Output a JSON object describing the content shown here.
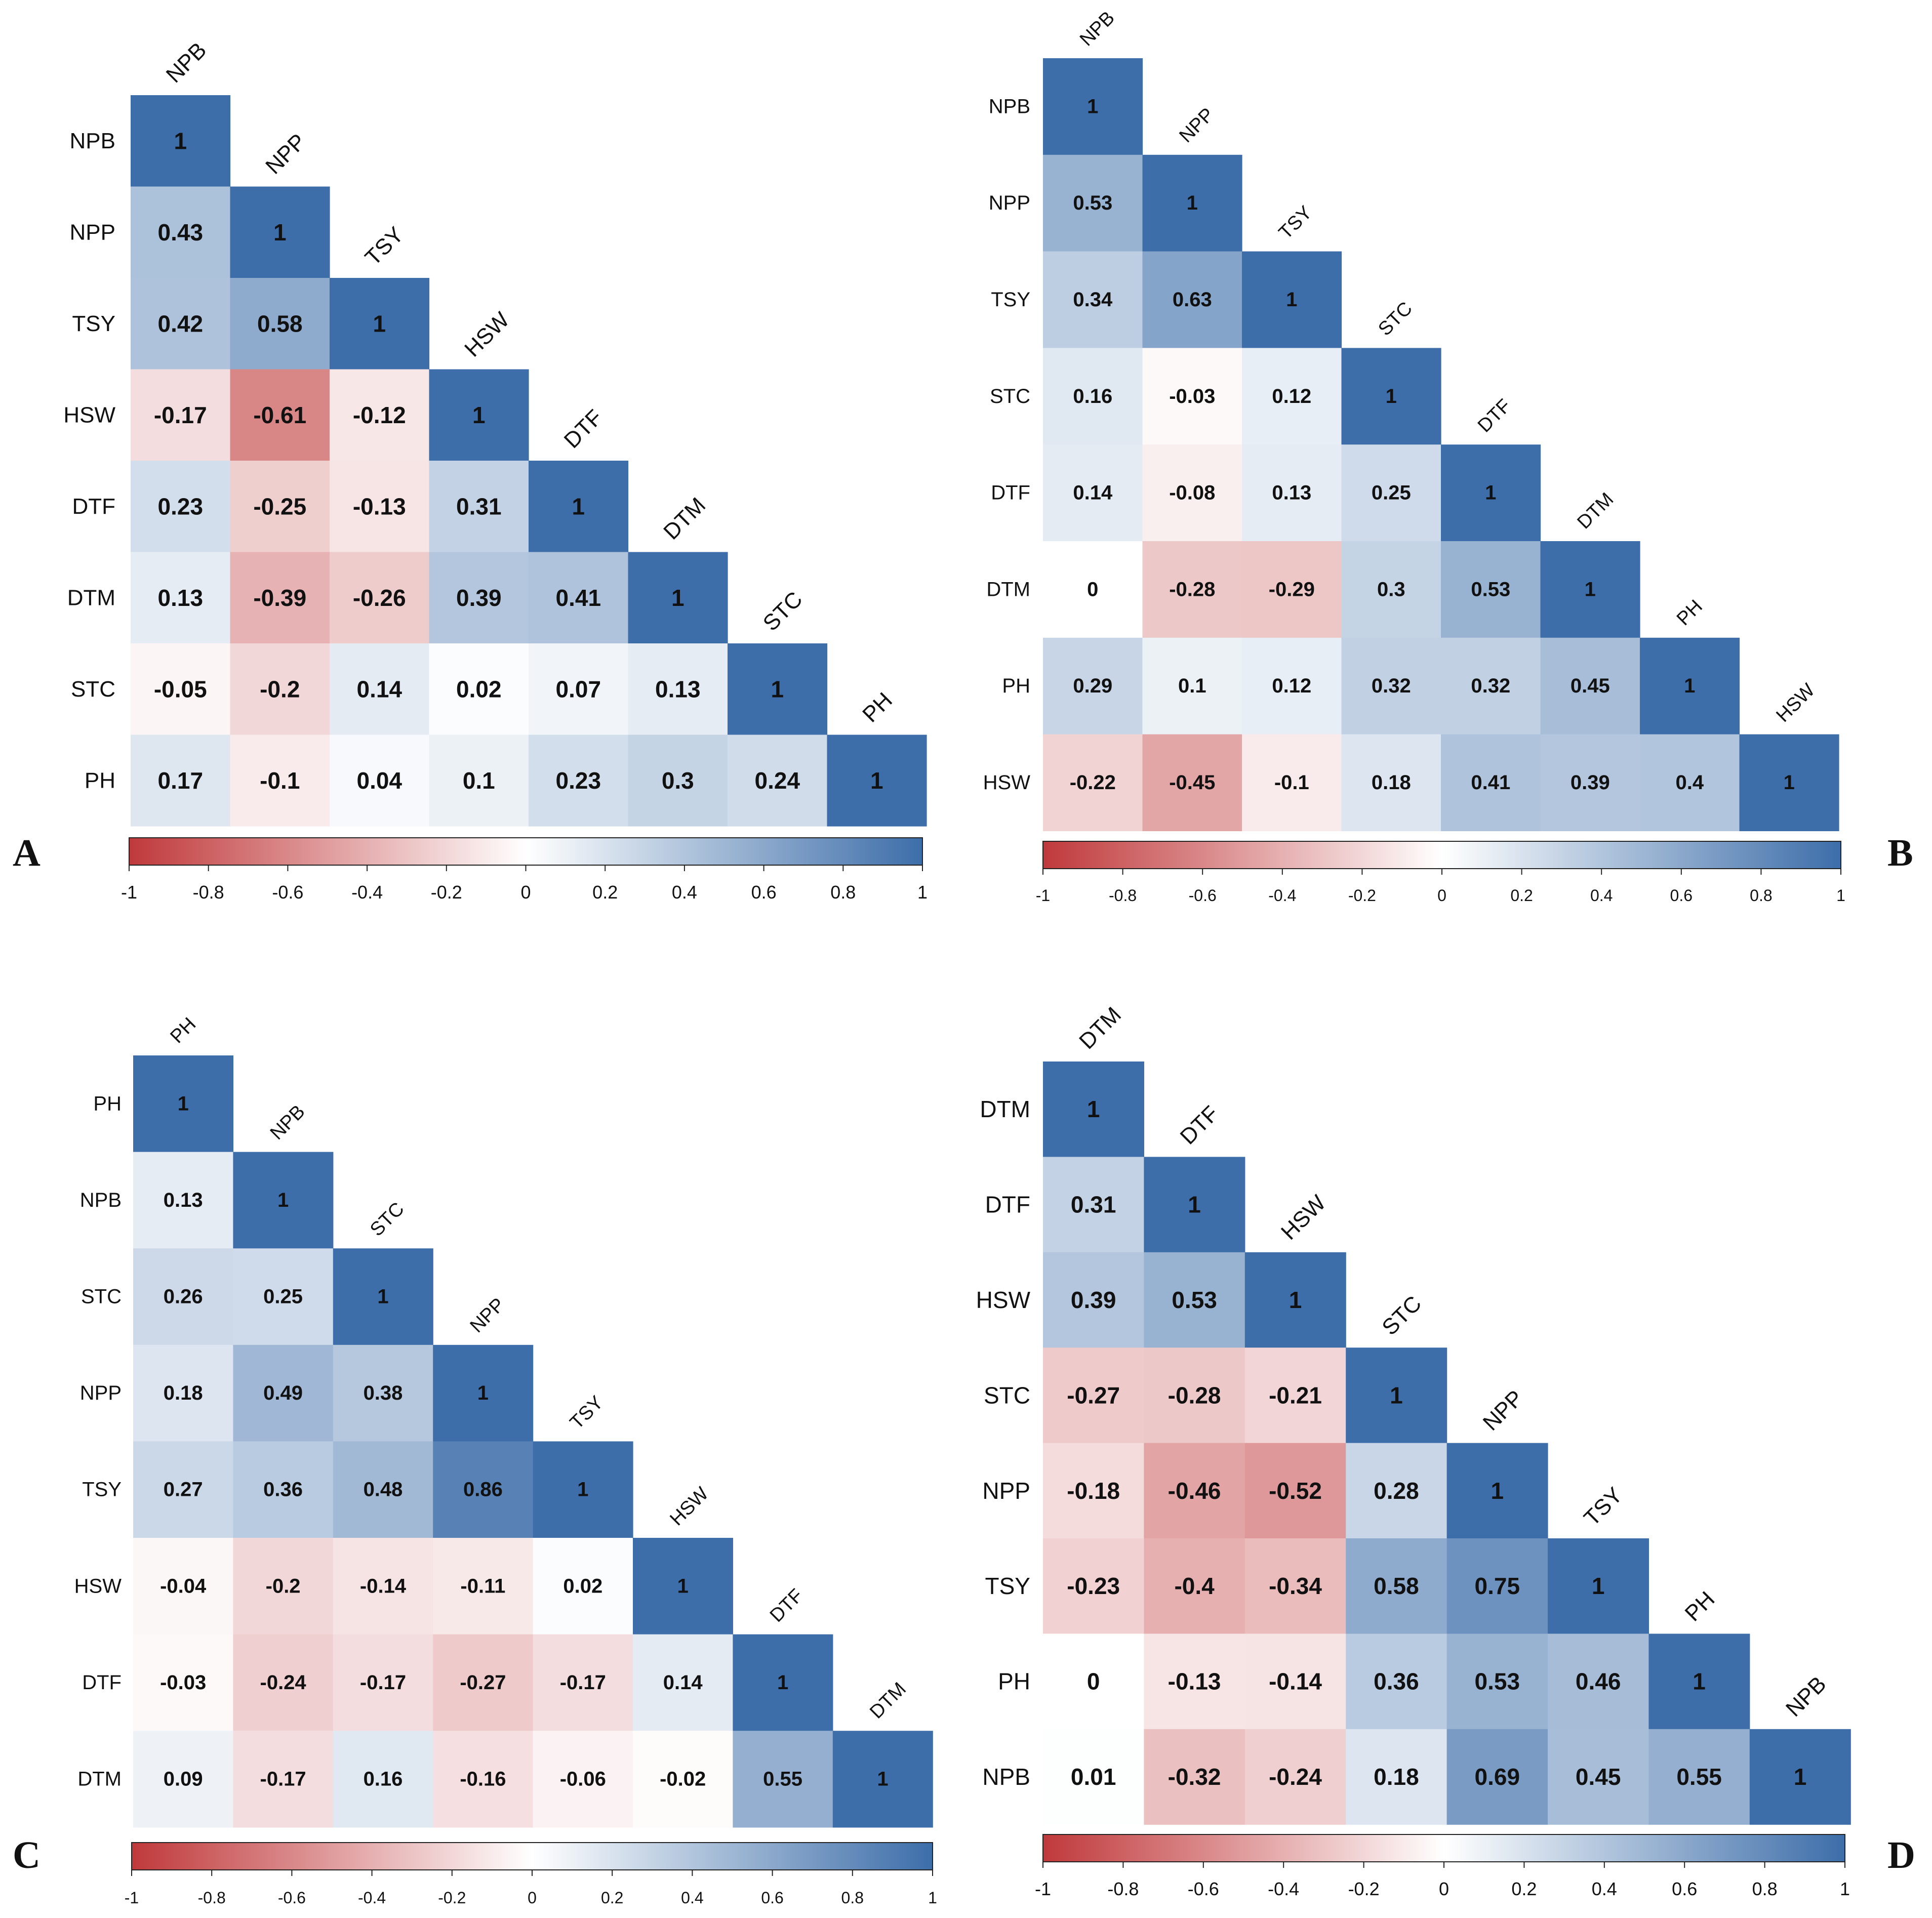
{
  "figure": {
    "colors": {
      "negative": "#c0393b",
      "zero": "#ffffff",
      "positive": "#3d6ea9",
      "text": "#111111",
      "border": "#222222"
    }
  },
  "chart_data": [
    {
      "type": "heatmap",
      "panel": "A",
      "variables": [
        "NPB",
        "NPP",
        "TSY",
        "HSW",
        "DTF",
        "DTM",
        "STC",
        "PH"
      ],
      "matrix": [
        [
          1
        ],
        [
          0.43,
          1
        ],
        [
          0.42,
          0.58,
          1
        ],
        [
          -0.17,
          -0.61,
          -0.12,
          1
        ],
        [
          0.23,
          -0.25,
          -0.13,
          0.31,
          1
        ],
        [
          0.13,
          -0.39,
          -0.26,
          0.39,
          0.41,
          1
        ],
        [
          -0.05,
          -0.2,
          0.14,
          0.02,
          0.07,
          0.13,
          1
        ],
        [
          0.17,
          -0.1,
          0.04,
          0.1,
          0.23,
          0.3,
          0.24,
          1
        ]
      ],
      "colorbar": {
        "range": [
          -1,
          1
        ],
        "ticks": [
          "-1",
          "-0.8",
          "-0.6",
          "-0.4",
          "-0.2",
          "0",
          "0.2",
          "0.4",
          "0.6",
          "0.8",
          "1"
        ]
      }
    },
    {
      "type": "heatmap",
      "panel": "B",
      "variables": [
        "NPB",
        "NPP",
        "TSY",
        "STC",
        "DTF",
        "DTM",
        "PH",
        "HSW"
      ],
      "matrix": [
        [
          1
        ],
        [
          0.53,
          1
        ],
        [
          0.34,
          0.63,
          1
        ],
        [
          0.16,
          -0.03,
          0.12,
          1
        ],
        [
          0.14,
          -0.08,
          0.13,
          0.25,
          1
        ],
        [
          0,
          -0.28,
          -0.29,
          0.3,
          0.53,
          1
        ],
        [
          0.29,
          0.1,
          0.12,
          0.32,
          0.32,
          0.45,
          1
        ],
        [
          -0.22,
          -0.45,
          -0.1,
          0.18,
          0.41,
          0.39,
          0.4,
          1
        ]
      ],
      "colorbar": {
        "range": [
          -1,
          1
        ],
        "ticks": [
          "-1",
          "-0.8",
          "-0.6",
          "-0.4",
          "-0.2",
          "0",
          "0.2",
          "0.4",
          "0.6",
          "0.8",
          "1"
        ]
      }
    },
    {
      "type": "heatmap",
      "panel": "C",
      "variables": [
        "PH",
        "NPB",
        "STC",
        "NPP",
        "TSY",
        "HSW",
        "DTF",
        "DTM"
      ],
      "matrix": [
        [
          1
        ],
        [
          0.13,
          1
        ],
        [
          0.26,
          0.25,
          1
        ],
        [
          0.18,
          0.49,
          0.38,
          1
        ],
        [
          0.27,
          0.36,
          0.48,
          0.86,
          1
        ],
        [
          -0.04,
          -0.2,
          -0.14,
          -0.11,
          0.02,
          1
        ],
        [
          -0.03,
          -0.24,
          -0.17,
          -0.27,
          -0.17,
          0.14,
          1
        ],
        [
          0.09,
          -0.17,
          0.16,
          -0.16,
          -0.06,
          -0.02,
          0.55,
          1
        ]
      ],
      "colorbar": {
        "range": [
          -1,
          1
        ],
        "ticks": [
          "-1",
          "-0.8",
          "-0.6",
          "-0.4",
          "-0.2",
          "0",
          "0.2",
          "0.4",
          "0.6",
          "0.8",
          "1"
        ]
      }
    },
    {
      "type": "heatmap",
      "panel": "D",
      "variables": [
        "DTM",
        "DTF",
        "HSW",
        "STC",
        "NPP",
        "TSY",
        "PH",
        "NPB"
      ],
      "matrix": [
        [
          1
        ],
        [
          0.31,
          1
        ],
        [
          0.39,
          0.53,
          1
        ],
        [
          -0.27,
          -0.28,
          -0.21,
          1
        ],
        [
          -0.18,
          -0.46,
          -0.52,
          0.28,
          1
        ],
        [
          -0.23,
          -0.4,
          -0.34,
          0.58,
          0.75,
          1
        ],
        [
          0,
          -0.13,
          -0.14,
          0.36,
          0.53,
          0.46,
          1
        ],
        [
          0.01,
          -0.32,
          -0.24,
          0.18,
          0.69,
          0.45,
          0.55,
          1
        ]
      ],
      "colorbar": {
        "range": [
          -1,
          1
        ],
        "ticks": [
          "-1",
          "-0.8",
          "-0.6",
          "-0.4",
          "-0.2",
          "0",
          "0.2",
          "0.4",
          "0.6",
          "0.8",
          "1"
        ]
      }
    }
  ]
}
